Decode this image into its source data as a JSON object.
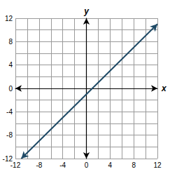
{
  "chart_data": {
    "type": "line",
    "xlabel": "x",
    "ylabel": "y",
    "x": [
      -11,
      12
    ],
    "values": [
      -12,
      11
    ],
    "color": "#1f4a66",
    "xlim": [
      -12,
      12
    ],
    "xticks": [
      -12,
      -8,
      -4,
      0,
      4,
      8,
      12
    ],
    "ylim": [
      -12,
      12
    ],
    "yticks": [
      -12,
      -8,
      -4,
      0,
      4,
      8,
      12
    ],
    "grid": true
  }
}
